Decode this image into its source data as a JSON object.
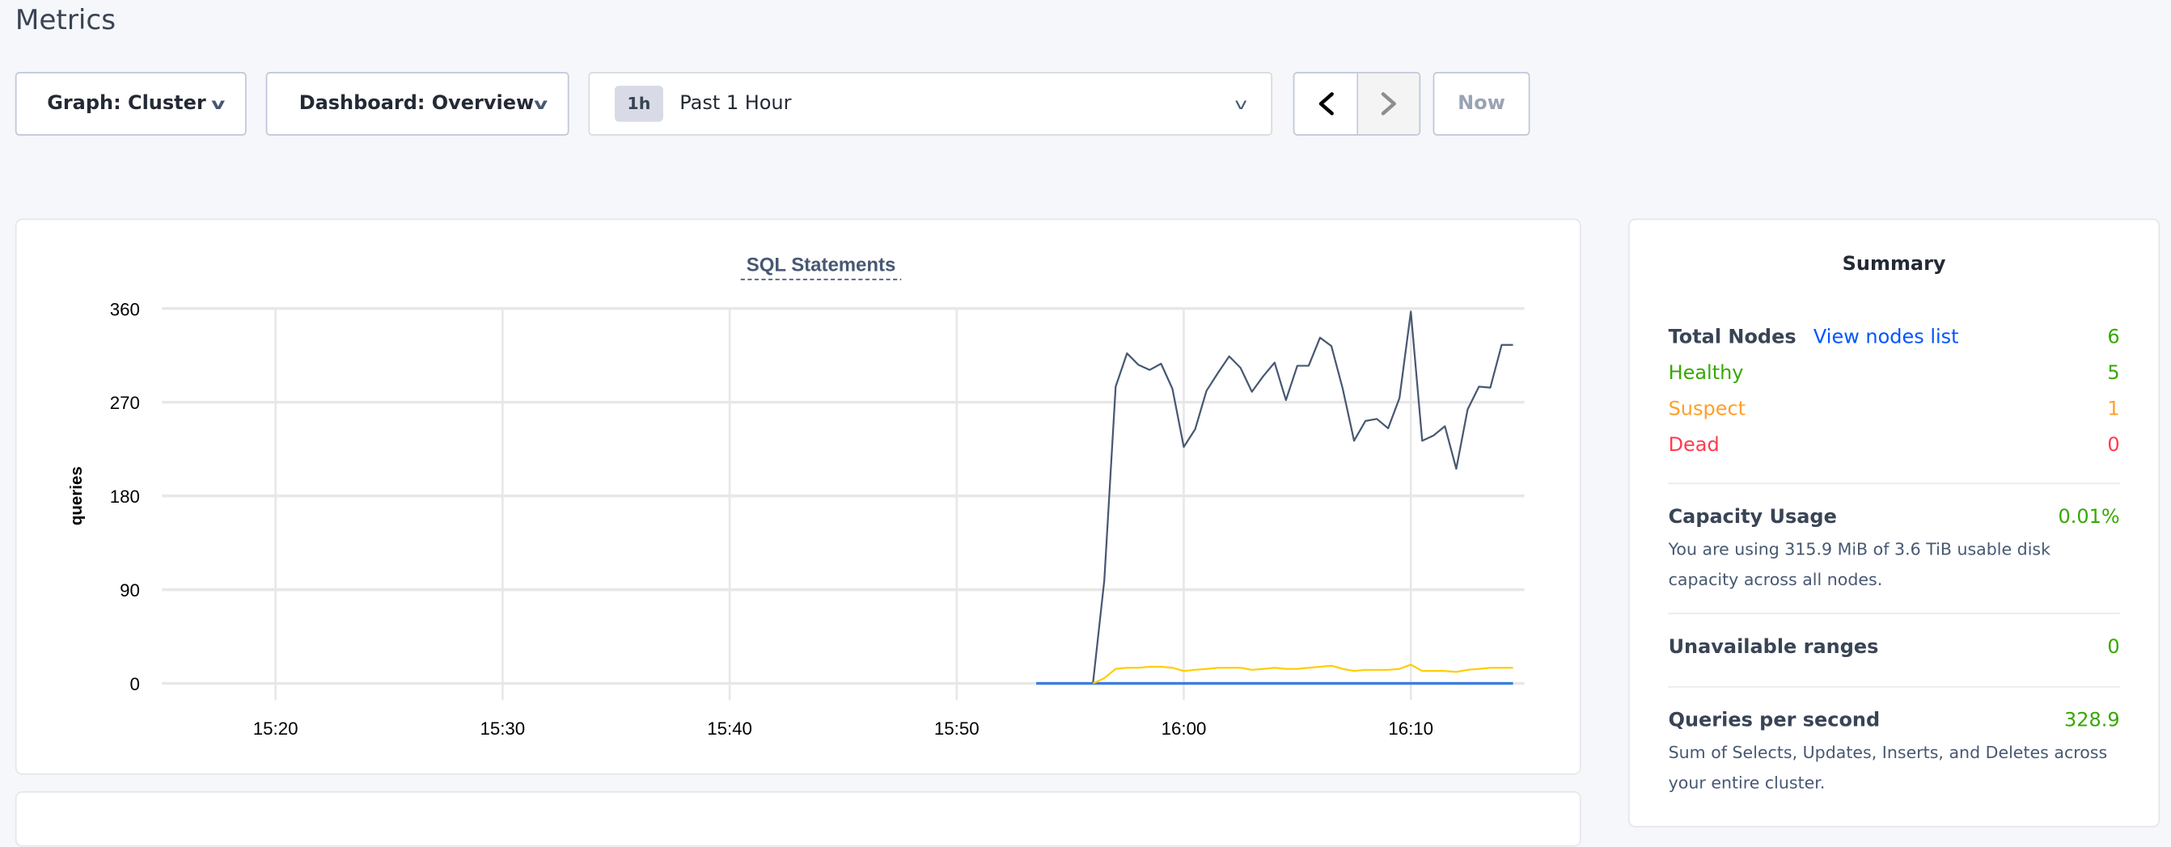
{
  "page": {
    "title": "Metrics"
  },
  "toolbar": {
    "graph_label": "Graph: Cluster",
    "dashboard_label": "Dashboard: Overview",
    "time_tag": "1h",
    "time_range": "Past 1 Hour",
    "prev_icon": "chevron-left-icon",
    "next_icon": "chevron-right-icon",
    "now_label": "Now"
  },
  "chart_data": {
    "type": "line",
    "title": "SQL Statements",
    "ylabel": "queries",
    "xlabel": "",
    "ylim": [
      0,
      360
    ],
    "yticks": [
      "360",
      "270",
      "180",
      "90",
      "0"
    ],
    "xlim": [
      "15:15",
      "16:15"
    ],
    "xticks": [
      "15:20",
      "15:30",
      "15:40",
      "15:50",
      "16:00",
      "16:10"
    ],
    "grid": true,
    "series": [
      {
        "color": "#475872",
        "x": [
          "15:56:00",
          "15:56:30",
          "15:57:00",
          "15:57:30",
          "15:58:00",
          "15:58:30",
          "15:59:00",
          "15:59:30",
          "16:00:00",
          "16:00:30",
          "16:01:00",
          "16:01:30",
          "16:02:00",
          "16:02:30",
          "16:03:00",
          "16:03:30",
          "16:04:00",
          "16:04:30",
          "16:05:00",
          "16:05:30",
          "16:06:00",
          "16:06:30",
          "16:07:00",
          "16:07:30",
          "16:08:00",
          "16:08:30",
          "16:09:00",
          "16:09:30",
          "16:10:00",
          "16:10:30",
          "16:11:00",
          "16:11:30",
          "16:12:00",
          "16:12:30",
          "16:13:00",
          "16:13:30",
          "16:14:00",
          "16:14:30"
        ],
        "values": [
          0,
          99,
          285,
          317,
          306,
          301,
          307,
          283,
          227,
          244,
          281,
          298,
          314,
          303,
          280,
          295,
          308,
          272,
          305,
          305,
          332,
          324,
          283,
          233,
          252,
          254,
          245,
          274,
          357,
          233,
          238,
          247,
          206,
          263,
          285,
          284,
          325,
          325
        ]
      },
      {
        "color": "#ffcd02",
        "x": [
          "15:56:00",
          "15:56:30",
          "15:57:00",
          "15:57:30",
          "15:58:00",
          "15:58:30",
          "15:59:00",
          "15:59:30",
          "16:00:00",
          "16:00:30",
          "16:01:00",
          "16:01:30",
          "16:02:00",
          "16:02:30",
          "16:03:00",
          "16:03:30",
          "16:04:00",
          "16:04:30",
          "16:05:00",
          "16:05:30",
          "16:06:00",
          "16:06:30",
          "16:07:00",
          "16:07:30",
          "16:08:00",
          "16:08:30",
          "16:09:00",
          "16:09:30",
          "16:10:00",
          "16:10:30",
          "16:11:00",
          "16:11:30",
          "16:12:00",
          "16:12:30",
          "16:13:00",
          "16:13:30",
          "16:14:00",
          "16:14:30"
        ],
        "values": [
          0,
          5,
          14,
          15,
          15,
          16,
          16,
          15,
          12,
          13,
          14,
          15,
          15,
          15,
          13,
          14,
          15,
          14,
          14,
          15,
          16,
          17,
          14,
          12,
          13,
          13,
          13,
          14,
          18,
          12,
          12,
          12,
          11,
          13,
          14,
          15,
          15,
          15
        ]
      },
      {
        "color": "#3a7de1",
        "x": [
          "15:53:30",
          "16:14:30"
        ],
        "values": [
          0,
          0
        ]
      }
    ]
  },
  "summary": {
    "title": "Summary",
    "total_nodes_label": "Total Nodes",
    "view_nodes_link": "View nodes list",
    "total_nodes": "6",
    "healthy_label": "Healthy",
    "healthy": "5",
    "suspect_label": "Suspect",
    "suspect": "1",
    "dead_label": "Dead",
    "dead": "0",
    "capacity_label": "Capacity Usage",
    "capacity": "0.01%",
    "capacity_desc": "You are using 315.9 MiB of 3.6 TiB usable disk capacity across all nodes.",
    "unavailable_label": "Unavailable ranges",
    "unavailable": "0",
    "qps_label": "Queries per second",
    "qps": "328.9",
    "qps_desc": "Sum of Selects, Updates, Inserts, and Deletes across your entire cluster.",
    "colors": {
      "green": "#37a806",
      "orange": "#ff9f28",
      "red": "#ff3b4e",
      "link": "#0055ff"
    }
  }
}
